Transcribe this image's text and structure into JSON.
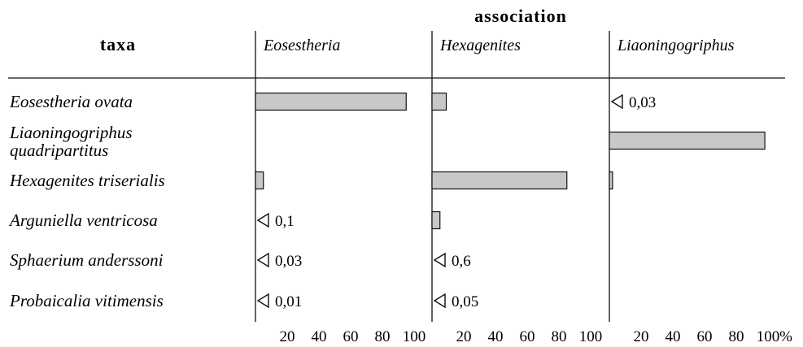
{
  "chart_data": {
    "type": "bar",
    "orientation": "horizontal",
    "header_left": "taxa",
    "header_top": "association",
    "unit": "%",
    "xlim": [
      0,
      100
    ],
    "ticks": [
      "20",
      "40",
      "60",
      "80",
      "100"
    ],
    "bar_color": "#c8c8c8",
    "categories": [
      [
        "Eosestheria ovata"
      ],
      [
        "Liaoningogriphus",
        "quadripartitus"
      ],
      [
        "Hexagenites triserialis"
      ],
      [
        "Arguniella ventricosa"
      ],
      [
        "Sphaerium anderssoni"
      ],
      [
        "Probaicalia vitimensis"
      ]
    ],
    "series": [
      {
        "name": "Eosestheria",
        "values": [
          95,
          0,
          5,
          0.1,
          0.03,
          0.01
        ],
        "labels": [
          null,
          null,
          null,
          "0,1",
          "0,03",
          "0,01"
        ]
      },
      {
        "name": "Hexagenites",
        "values": [
          9,
          0,
          85,
          5,
          0.6,
          0.05
        ],
        "labels": [
          null,
          null,
          null,
          null,
          "0,6",
          "0,05"
        ]
      },
      {
        "name": "Liaoningogriphus",
        "values": [
          0.03,
          98,
          2,
          0,
          0,
          0
        ],
        "labels": [
          "0,03",
          null,
          null,
          null,
          null,
          null
        ]
      }
    ]
  }
}
